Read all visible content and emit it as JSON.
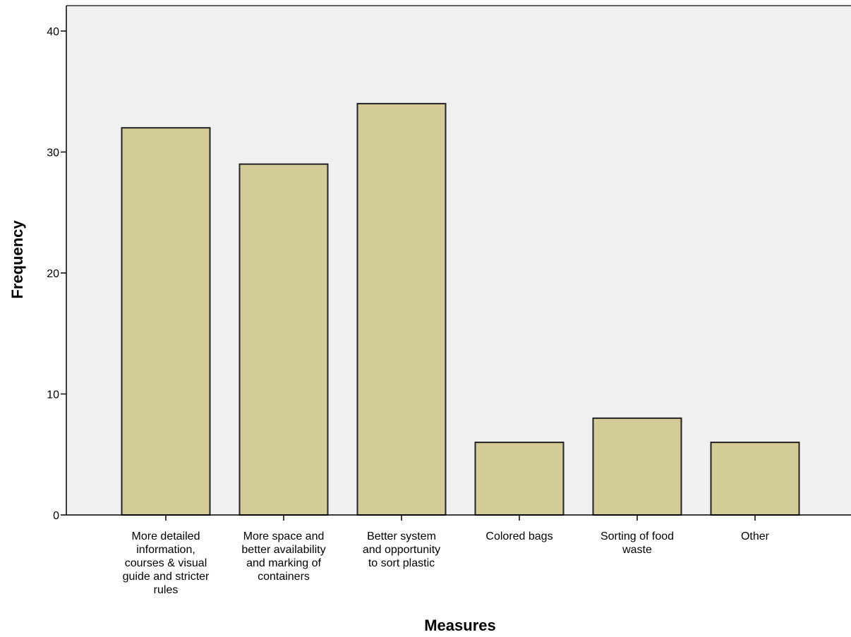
{
  "chart_data": {
    "type": "bar",
    "title": "",
    "xlabel": "Measures",
    "ylabel": "Frequency",
    "ylim": [
      0,
      40
    ],
    "yticks": [
      0,
      10,
      20,
      30,
      40
    ],
    "grid": false,
    "categories": [
      [
        "More detailed",
        "information,",
        "courses & visual",
        "guide and stricter",
        "rules"
      ],
      [
        "More space and",
        "better availability",
        "and marking of",
        "containers"
      ],
      [
        "Better system",
        "and opportunity",
        "to sort plastic"
      ],
      [
        "Colored bags"
      ],
      [
        "Sorting of food",
        "waste"
      ],
      [
        "Other"
      ]
    ],
    "values": [
      32,
      29,
      34,
      6,
      8,
      6
    ],
    "colors": {
      "bar": "#d3cc96",
      "plot_background": "#f0f0f0",
      "bar_border": "#222222"
    }
  }
}
